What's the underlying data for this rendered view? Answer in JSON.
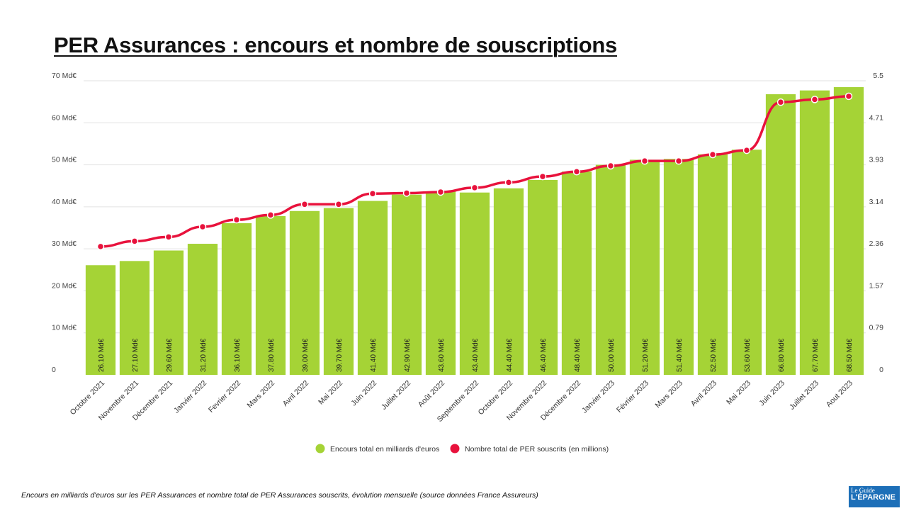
{
  "chart_data": {
    "type": "bar+line",
    "title": "PER Assurances : encours et nombre de souscriptions",
    "categories": [
      "Octobre 2021",
      "Novembre 2021",
      "Décembre 2021",
      "Janvier 2022",
      "Fevrier 2022",
      "Mars 2022",
      "Avril 2022",
      "Mai 2022",
      "Juin 2022",
      "Juillet 2022",
      "Août 2022",
      "Septembre 2022",
      "Octobre 2022",
      "Novembre 2022",
      "Décembre 2022",
      "Janvier 2023",
      "Février 2023",
      "Mars 2023",
      "Avril 2023",
      "Mai 2023",
      "Juin 2023",
      "Juillet 2023",
      "Aout 2023"
    ],
    "series": [
      {
        "name": "Encours total en milliards d'euros",
        "type": "bar",
        "axis": "left",
        "color": "#a5d336",
        "values": [
          26.1,
          27.1,
          29.6,
          31.2,
          36.1,
          37.8,
          39.0,
          39.7,
          41.4,
          42.9,
          43.6,
          43.4,
          44.4,
          46.4,
          48.4,
          50.0,
          51.2,
          51.4,
          52.5,
          53.6,
          66.8,
          67.7,
          68.5
        ],
        "data_labels": [
          "26.10 Md€",
          "27.10 Md€",
          "29.60 Md€",
          "31.20 Md€",
          "36.10 Md€",
          "37.80 Md€",
          "39.00 Md€",
          "39.70 Md€",
          "41.40 Md€",
          "42.90 Md€",
          "43.60 Md€",
          "43.40 Md€",
          "44.40 Md€",
          "46.40 Md€",
          "48.40 Md€",
          "50.00 Md€",
          "51.20 Md€",
          "51.40 Md€",
          "52.50 Md€",
          "53.60 Md€",
          "66.80 Md€",
          "67.70 Md€",
          "68.50 Md€"
        ]
      },
      {
        "name": "Nombre total de PER souscrits (en millions)",
        "type": "line",
        "axis": "right",
        "color": "#e8123c",
        "values": [
          2.4,
          2.5,
          2.58,
          2.77,
          2.9,
          2.99,
          3.19,
          3.19,
          3.39,
          3.4,
          3.42,
          3.5,
          3.6,
          3.71,
          3.8,
          3.91,
          4.0,
          4.0,
          4.12,
          4.2,
          5.1,
          5.15,
          5.21
        ]
      }
    ],
    "left_axis": {
      "ylim": [
        0,
        70
      ],
      "ticks": [
        "0",
        "10 Md€",
        "20 Md€",
        "30 Md€",
        "40 Md€",
        "50 Md€",
        "60 Md€",
        "70 Md€"
      ]
    },
    "right_axis": {
      "ylim": [
        0,
        5.5
      ],
      "ticks": [
        "0",
        "0.79",
        "1.57",
        "2.36",
        "3.14",
        "3.93",
        "4.71",
        "5.5"
      ]
    },
    "grid": true,
    "legend": "bottom"
  },
  "caption": "Encours en milliards d'euros sur les PER Assurances et nombre total de PER Assurances souscrits, évolution mensuelle (source données France Assureurs)",
  "logo_text": "Le Guide INDÉPENDANT de L'ÉPARGNE"
}
